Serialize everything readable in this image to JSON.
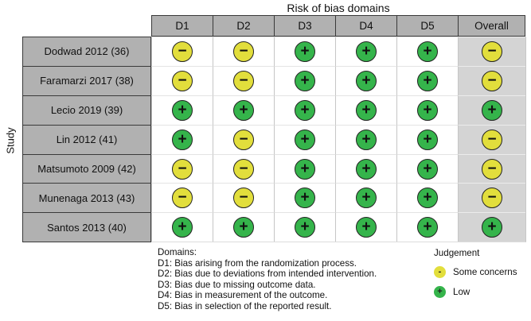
{
  "chart_data": {
    "type": "table",
    "title": "Risk of bias domains",
    "y_axis_label": "Study",
    "columns": [
      "D1",
      "D2",
      "D3",
      "D4",
      "D5",
      "Overall"
    ],
    "rows": [
      {
        "label": "Dodwad 2012 (36)",
        "cells": [
          {
            "judgement": "some-concerns",
            "symbol": "−"
          },
          {
            "judgement": "some-concerns",
            "symbol": "−"
          },
          {
            "judgement": "low",
            "symbol": "+"
          },
          {
            "judgement": "low",
            "symbol": "+"
          },
          {
            "judgement": "low",
            "symbol": "+"
          },
          {
            "judgement": "some-concerns",
            "symbol": "−"
          }
        ]
      },
      {
        "label": "Faramarzi 2017 (38)",
        "cells": [
          {
            "judgement": "some-concerns",
            "symbol": "−"
          },
          {
            "judgement": "some-concerns",
            "symbol": "−"
          },
          {
            "judgement": "low",
            "symbol": "+"
          },
          {
            "judgement": "low",
            "symbol": "+"
          },
          {
            "judgement": "low",
            "symbol": "+"
          },
          {
            "judgement": "some-concerns",
            "symbol": "−"
          }
        ]
      },
      {
        "label": "Lecio 2019 (39)",
        "cells": [
          {
            "judgement": "low",
            "symbol": "+"
          },
          {
            "judgement": "low",
            "symbol": "+"
          },
          {
            "judgement": "low",
            "symbol": "+"
          },
          {
            "judgement": "low",
            "symbol": "+"
          },
          {
            "judgement": "low",
            "symbol": "+"
          },
          {
            "judgement": "low",
            "symbol": "+"
          }
        ]
      },
      {
        "label": "Lin 2012 (41)",
        "cells": [
          {
            "judgement": "low",
            "symbol": "+"
          },
          {
            "judgement": "some-concerns",
            "symbol": "−"
          },
          {
            "judgement": "low",
            "symbol": "+"
          },
          {
            "judgement": "low",
            "symbol": "+"
          },
          {
            "judgement": "low",
            "symbol": "+"
          },
          {
            "judgement": "some-concerns",
            "symbol": "−"
          }
        ]
      },
      {
        "label": "Matsumoto 2009 (42)",
        "cells": [
          {
            "judgement": "some-concerns",
            "symbol": "−"
          },
          {
            "judgement": "some-concerns",
            "symbol": "−"
          },
          {
            "judgement": "low",
            "symbol": "+"
          },
          {
            "judgement": "low",
            "symbol": "+"
          },
          {
            "judgement": "low",
            "symbol": "+"
          },
          {
            "judgement": "some-concerns",
            "symbol": "−"
          }
        ]
      },
      {
        "label": "Munenaga 2013 (43)",
        "cells": [
          {
            "judgement": "some-concerns",
            "symbol": "−"
          },
          {
            "judgement": "some-concerns",
            "symbol": "−"
          },
          {
            "judgement": "low",
            "symbol": "+"
          },
          {
            "judgement": "low",
            "symbol": "+"
          },
          {
            "judgement": "low",
            "symbol": "+"
          },
          {
            "judgement": "some-concerns",
            "symbol": "−"
          }
        ]
      },
      {
        "label": "Santos 2013 (40)",
        "cells": [
          {
            "judgement": "low",
            "symbol": "+"
          },
          {
            "judgement": "low",
            "symbol": "+"
          },
          {
            "judgement": "low",
            "symbol": "+"
          },
          {
            "judgement": "low",
            "symbol": "+"
          },
          {
            "judgement": "low",
            "symbol": "+"
          },
          {
            "judgement": "low",
            "symbol": "+"
          }
        ]
      }
    ],
    "footnotes": {
      "heading": "Domains:",
      "lines": [
        "D1: Bias arising from the randomization process.",
        "D2: Bias due to deviations from intended intervention.",
        "D3: Bias due to missing outcome data.",
        "D4: Bias in measurement of the outcome.",
        "D5: Bias in selection of the reported result."
      ]
    },
    "legend": {
      "title": "Judgement",
      "items": [
        {
          "label": "Some concerns",
          "judgement": "some-concerns",
          "symbol": "-"
        },
        {
          "label": "Low",
          "judgement": "low",
          "symbol": "+"
        }
      ]
    },
    "colors": {
      "low": "#35b44b",
      "some_concerns": "#e2de3c",
      "header_bg": "#b1b1b1",
      "overall_column_bg": "#d4d4d4"
    }
  }
}
